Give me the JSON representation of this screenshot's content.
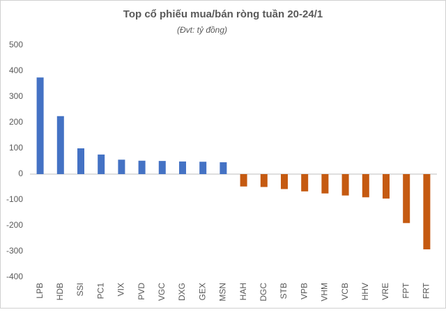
{
  "chart_data": {
    "type": "bar",
    "title": "Top cổ phiếu mua/bán ròng tuần 20-24/1",
    "subtitle": "(Đvt: tỷ đồng)",
    "categories": [
      "LPB",
      "HDB",
      "SSI",
      "PC1",
      "VIX",
      "PVD",
      "VGC",
      "DXG",
      "GEX",
      "MSN",
      "HAH",
      "DGC",
      "STB",
      "VPB",
      "VHM",
      "VCB",
      "HHV",
      "VRE",
      "FPT",
      "FRT"
    ],
    "values": [
      375,
      225,
      100,
      76,
      56,
      52,
      51,
      49,
      48,
      46,
      -48,
      -50,
      -58,
      -67,
      -75,
      -83,
      -90,
      -95,
      -190,
      -292
    ],
    "color": "#4472c4",
    "negative_color": "#c55a11",
    "ylim": [
      -400,
      500
    ],
    "yticks": [
      -400,
      -300,
      -200,
      -100,
      0,
      100,
      200,
      300,
      400,
      500
    ],
    "grid": false
  }
}
